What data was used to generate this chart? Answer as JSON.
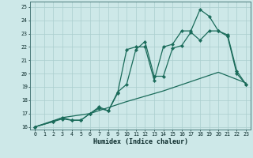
{
  "xlabel": "Humidex (Indice chaleur)",
  "bg_color": "#cde8e8",
  "grid_color": "#aacece",
  "line_color": "#1a6b5a",
  "xlim": [
    -0.5,
    23.5
  ],
  "ylim": [
    15.8,
    25.4
  ],
  "xticks": [
    0,
    1,
    2,
    3,
    4,
    5,
    6,
    7,
    8,
    9,
    10,
    11,
    12,
    13,
    14,
    15,
    16,
    17,
    18,
    19,
    20,
    21,
    22,
    23
  ],
  "yticks": [
    16,
    17,
    18,
    19,
    20,
    21,
    22,
    23,
    24,
    25
  ],
  "line1_x": [
    0,
    2,
    3,
    4,
    5,
    6,
    7,
    8,
    9,
    10,
    11,
    12,
    13,
    14,
    15,
    16,
    17,
    18,
    19,
    20,
    21,
    22,
    23
  ],
  "line1_y": [
    16.0,
    16.4,
    16.6,
    16.5,
    16.5,
    17.0,
    17.5,
    17.2,
    18.6,
    19.2,
    21.8,
    22.4,
    19.8,
    19.8,
    21.9,
    22.1,
    23.1,
    22.5,
    23.2,
    23.2,
    22.8,
    20.0,
    19.2
  ],
  "line2_x": [
    0,
    2,
    3,
    4,
    5,
    6,
    7,
    8,
    9,
    10,
    11,
    12,
    13,
    14,
    15,
    16,
    17,
    18,
    19,
    20,
    21,
    22,
    23
  ],
  "line2_y": [
    16.0,
    16.4,
    16.7,
    16.5,
    16.5,
    17.0,
    17.4,
    17.2,
    18.5,
    21.8,
    22.0,
    22.0,
    19.5,
    22.0,
    22.2,
    23.2,
    23.2,
    24.8,
    24.3,
    23.2,
    22.9,
    20.2,
    19.2
  ],
  "line3_x": [
    0,
    3,
    6,
    10,
    14,
    17,
    20,
    23
  ],
  "line3_y": [
    16.0,
    16.7,
    17.0,
    17.9,
    18.7,
    19.4,
    20.1,
    19.3
  ]
}
